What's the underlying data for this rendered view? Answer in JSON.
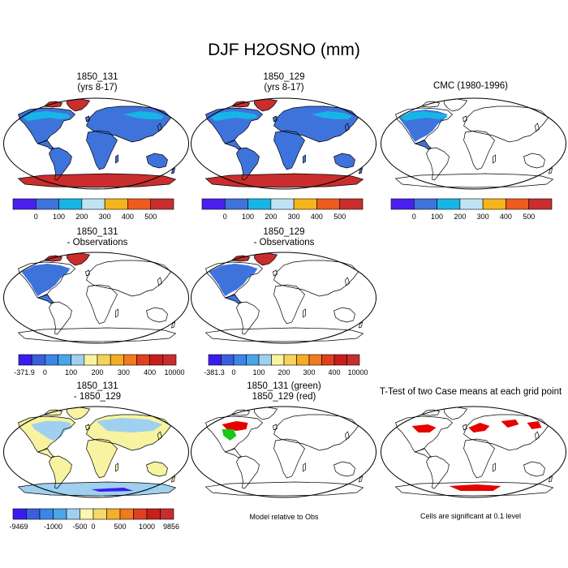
{
  "figure": {
    "title": "DJF H2OSNO (mm)",
    "panels": [
      {
        "id": "p1",
        "title1": "1850_131",
        "title2": "(yrs 8-17)",
        "kind": "full-red"
      },
      {
        "id": "p2",
        "title1": "1850_129",
        "title2": "(yrs 8-17)",
        "kind": "full-red"
      },
      {
        "id": "p3",
        "title1": "CMC (1980-1996)",
        "title2": "",
        "kind": "cmc"
      },
      {
        "id": "p4",
        "title1": "1850_131",
        "title2": "- Observations",
        "kind": "diff-obs"
      },
      {
        "id": "p5",
        "title1": "1850_129",
        "title2": "- Observations",
        "kind": "diff-obs"
      },
      {
        "id": "p6",
        "title1": "1850_131",
        "title2": "- 1850_129",
        "kind": "case-diff"
      },
      {
        "id": "p7",
        "title1": "1850_131 (green)",
        "title2": "1850_129 (red)",
        "kind": "relative"
      },
      {
        "id": "p8",
        "title1": "T-Test of two Case means at each grid point",
        "title2": "",
        "kind": "ttest"
      }
    ],
    "colorbars": {
      "mean": {
        "colors": [
          "#4b1ff0",
          "#3f73dc",
          "#17b5e6",
          "#bfe3f3",
          "#f5b51a",
          "#ef5a1e",
          "#c92d2d"
        ],
        "labels": [
          "0",
          "100",
          "200",
          "300",
          "400",
          "500"
        ]
      },
      "diff131": {
        "colors": [
          "#3b1cf0",
          "#3a5fdc",
          "#3b86e6",
          "#49a6e8",
          "#9fd0ef",
          "#f7f3a0",
          "#f5d35a",
          "#f5ab22",
          "#f07a1e",
          "#e0401e",
          "#c81e1e",
          "#c82d2d"
        ],
        "labels": [
          "-371.9",
          "0",
          "100",
          "200",
          "300",
          "400",
          "10000"
        ]
      },
      "diff129": {
        "colors": [
          "#3b1cf0",
          "#3a5fdc",
          "#3b86e6",
          "#49a6e8",
          "#9fd0ef",
          "#f7f3a0",
          "#f5d35a",
          "#f5ab22",
          "#f07a1e",
          "#e0401e",
          "#c81e1e",
          "#c82d2d"
        ],
        "labels": [
          "-381.3",
          "0",
          "100",
          "200",
          "300",
          "400",
          "10000"
        ]
      },
      "casediff": {
        "colors": [
          "#3b1cf0",
          "#3a5fdc",
          "#3b86e6",
          "#49a6e8",
          "#9fd0ef",
          "#fbf6b0",
          "#f7d96a",
          "#f5b02a",
          "#f07a1e",
          "#e0401e",
          "#c81e1e",
          "#c82d2d"
        ],
        "labels": [
          "-9469",
          "-1000",
          "-500",
          "0",
          "500",
          "1000",
          "9856"
        ]
      }
    },
    "notes": {
      "relative": "Model relative to Obs",
      "ttest": "Cells are significant at 0.1 level"
    },
    "colors": {
      "land_snow": "#3f73dc",
      "snow_light": "#17b5e6",
      "snow_deep": "#c92d2d",
      "diff_pos_low": "#f7f3a0",
      "diff_neg": "#9fd0ef",
      "sig": "#e60000",
      "green": "#19c819",
      "outline": "#000000"
    }
  }
}
